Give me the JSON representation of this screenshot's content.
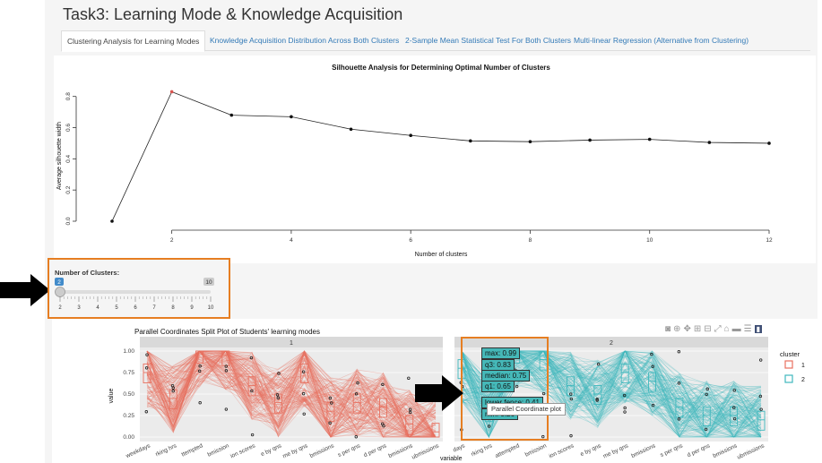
{
  "page": {
    "title": "Task3: Learning Mode & Knowledge Acquisition",
    "tabs": [
      "Clustering Analysis for Learning Modes",
      "Knowledge Acquisition Distribution Across Both Clusters",
      "2-Sample Mean Statistical Test For Both Clusters",
      "Multi-linear Regression (Alternative from Clustering)"
    ],
    "active_tab": 0
  },
  "silhouette_chart": {
    "title": "Silhouette Analysis for Determining Optimal Number of Clusters",
    "xlabel": "Number of clusters",
    "ylabel": "Average silhouette width",
    "x_ticks": [
      "2",
      "4",
      "6",
      "8",
      "10",
      "12"
    ],
    "y_ticks": [
      "0.0",
      "0.2",
      "0.4",
      "0.6",
      "0.8"
    ]
  },
  "slider": {
    "label": "Number of Clusters:",
    "value": "2",
    "max": "10",
    "ticks": [
      "2",
      "3",
      "4",
      "5",
      "6",
      "7",
      "8",
      "9",
      "10"
    ]
  },
  "parallel_chart": {
    "title": "Parallel Coordinates Split Plot of Students' learning modes",
    "facets": [
      "1",
      "2"
    ],
    "ylabel": "value",
    "xlabel": "variable",
    "y_ticks": [
      "1.00",
      "0.75",
      "0.50",
      "0.25",
      "0.00"
    ],
    "x_ticks_1": [
      "weekdays",
      "rking hrs",
      "ttempted",
      "bmission",
      "ion scores",
      "e by qns",
      "me by qns",
      "bmissions",
      "s per qns",
      "d per qns",
      "bmissions",
      "ubmissions"
    ],
    "x_ticks_2": [
      "days",
      "rking hrs",
      "attempted",
      "bmission",
      "ion scores",
      "e by qns",
      "me by qns",
      "bmissions",
      "s per qns",
      "d per qns",
      "bmissions",
      "ubmissions"
    ],
    "legend_title": "cluster",
    "legend": [
      {
        "label": "1",
        "color": "#e8705f"
      },
      {
        "label": "2",
        "color": "#3fb8bd"
      }
    ],
    "tooltip": [
      "max: 0.99",
      "q3: 0.83",
      "median: 0.75",
      "q1: 0.65",
      "lower fence: 0.41",
      "min: 0.26"
    ],
    "tooltip_title": "Parallel Coordinate plot"
  },
  "chart_data": {
    "type": "line",
    "title": "Silhouette Analysis for Determining Optimal Number of Clusters",
    "xlabel": "Number of clusters",
    "ylabel": "Average silhouette width",
    "x": [
      1,
      2,
      3,
      4,
      5,
      6,
      7,
      8,
      9,
      10,
      11,
      12
    ],
    "values": [
      0.0,
      0.83,
      0.68,
      0.67,
      0.59,
      0.55,
      0.515,
      0.51,
      0.52,
      0.525,
      0.505,
      0.5
    ],
    "xlim": [
      1,
      12
    ],
    "ylim": [
      0,
      0.85
    ],
    "highlight_color": "#d9534f"
  }
}
